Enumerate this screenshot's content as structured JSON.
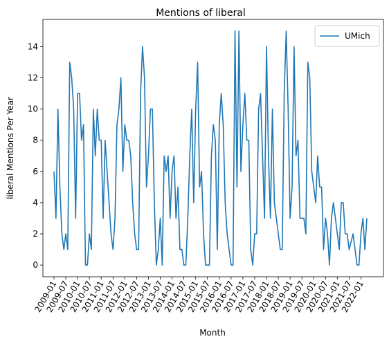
{
  "chart_data": {
    "type": "line",
    "title": "Mentions of liberal",
    "xlabel": "Month",
    "ylabel": "liberal Mentions Per Year",
    "ylim": [
      -0.75,
      15.75
    ],
    "yticks": [
      0,
      2,
      4,
      6,
      8,
      10,
      12,
      14
    ],
    "xticks": [
      "2009-01",
      "2009-07",
      "2010-01",
      "2010-07",
      "2011-01",
      "2011-07",
      "2012-01",
      "2012-07",
      "2013-01",
      "2013-07",
      "2014-01",
      "2014-07",
      "2015-01",
      "2015-07",
      "2016-01",
      "2016-07",
      "2017-01",
      "2017-07",
      "2018-01",
      "2018-07",
      "2019-01",
      "2019-07",
      "2020-01",
      "2020-07",
      "2021-01",
      "2021-07",
      "2022-01"
    ],
    "x_start": "2009-01",
    "grid": false,
    "legend_position": "top-right",
    "series": [
      {
        "name": "UMich",
        "color": "#1f77b4",
        "values": [
          6,
          3,
          10,
          5,
          2,
          1,
          2,
          1,
          13,
          12,
          10,
          3,
          11,
          11,
          8,
          9,
          0,
          0,
          2,
          1,
          10,
          7,
          10,
          8,
          8,
          3,
          8,
          6,
          4,
          2,
          1,
          3,
          9,
          10,
          12,
          6,
          9,
          8,
          8,
          7,
          4,
          2,
          1,
          1,
          11,
          14,
          12,
          5,
          7,
          10,
          10,
          4,
          0,
          1,
          3,
          0,
          7,
          6,
          7,
          3,
          6,
          7,
          3,
          5,
          1,
          1,
          0,
          0,
          3,
          7,
          10,
          4,
          10,
          13,
          5,
          6,
          2,
          0,
          0,
          0,
          7,
          9,
          8,
          1,
          9,
          11,
          9,
          4,
          2,
          1,
          0,
          0,
          15,
          5,
          15,
          6,
          9,
          11,
          8,
          8,
          1,
          0,
          2,
          2,
          10,
          11,
          7,
          3,
          14,
          7,
          3,
          10,
          4,
          3,
          2,
          1,
          1,
          11,
          15,
          10,
          3,
          5,
          14,
          7,
          8,
          3,
          3,
          3,
          2,
          13,
          12,
          6,
          5,
          4,
          7,
          5,
          5,
          1,
          3,
          2,
          0,
          3,
          4,
          3,
          2,
          1,
          4,
          4,
          2,
          2,
          1,
          1.5,
          2,
          1,
          0,
          0,
          2,
          3,
          1,
          3
        ]
      }
    ]
  }
}
